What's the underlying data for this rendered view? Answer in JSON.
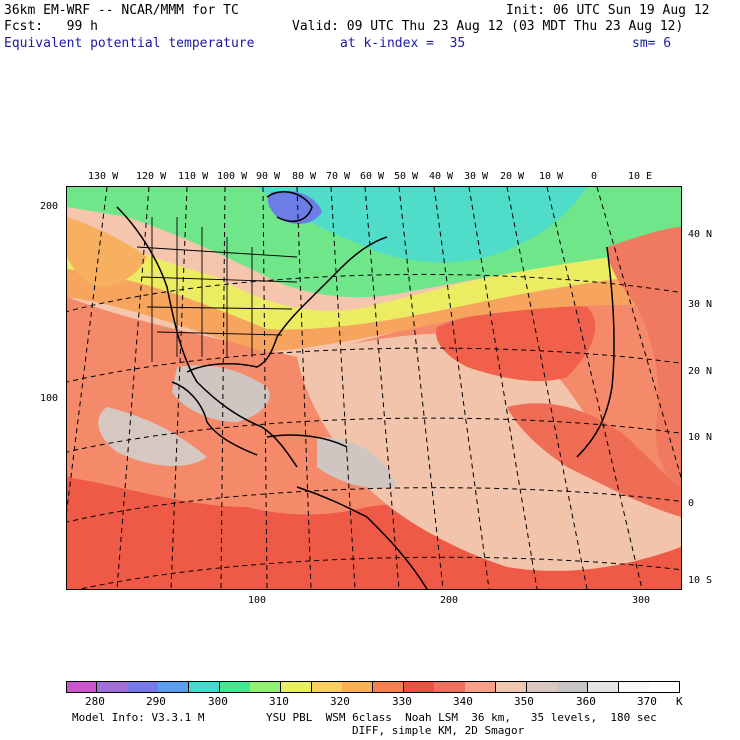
{
  "header": {
    "model_title": "36km EM-WRF -- NCAR/MMM for TC",
    "init": "Init: 06 UTC Sun 19 Aug 12",
    "fcst": "Fcst:   99 h",
    "valid": "Valid: 09 UTC Thu 23 Aug 12 (03 MDT Thu 23 Aug 12)",
    "field": "Equivalent potential temperature",
    "level": "at k-index =  35",
    "smoothing": "sm= 6"
  },
  "axes": {
    "top_lon_labels": [
      "130 W",
      "120 W",
      "110 W",
      "100 W",
      "90 W",
      "80 W",
      "70 W",
      "60 W",
      "50 W",
      "40 W",
      "30 W",
      "20 W",
      "10 W",
      "0",
      "10 E"
    ],
    "right_lat_labels": [
      "40 N",
      "30 N",
      "20 N",
      "10 N",
      "0",
      "10 S"
    ],
    "left_grid_labels": [
      "200",
      "100"
    ],
    "bottom_grid_labels": [
      "100",
      "200",
      "300"
    ]
  },
  "colorbar": {
    "unit": "K",
    "labels": [
      "280",
      "290",
      "300",
      "310",
      "320",
      "330",
      "340",
      "350",
      "360",
      "370"
    ],
    "colors": [
      "#cc55cc",
      "#a070d8",
      "#7878e8",
      "#5a9ef0",
      "#40dcd0",
      "#40e890",
      "#90f070",
      "#e8f060",
      "#f8d060",
      "#f8b050",
      "#f88050",
      "#f05040",
      "#f07060",
      "#f8a088",
      "#f0c8b0",
      "#d8c8c0",
      "#c8c4c4",
      "#e4e4e4",
      "#f8f8f8",
      "#ffffff"
    ]
  },
  "footer": {
    "model_info": "Model Info: V3.3.1 M",
    "physics": "YSU PBL  WSM 6class  Noah LSM  36 km,   35 levels,  180 sec",
    "diff": "DIFF, simple KM, 2D Smagor"
  }
}
